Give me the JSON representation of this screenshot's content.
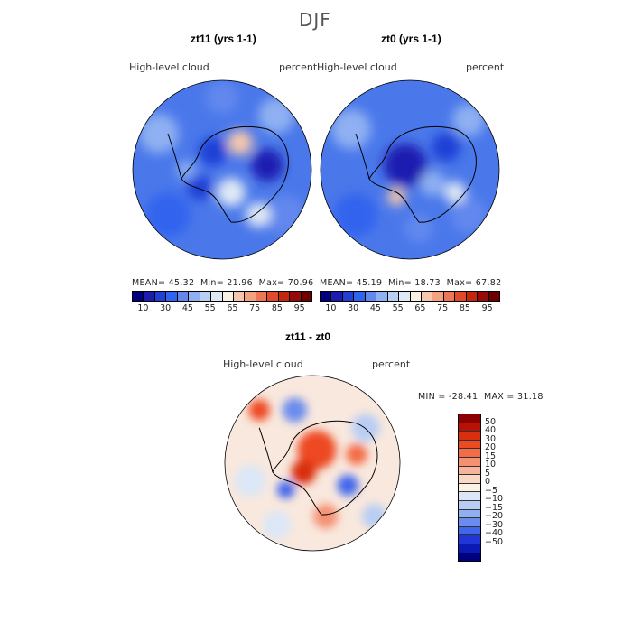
{
  "figure": {
    "title": "DJF"
  },
  "panels": [
    {
      "title": "zt11 (yrs 1-1)",
      "variable": "High-level cloud",
      "units": "percent",
      "stats": {
        "mean_label": "MEAN=",
        "mean": "45.32",
        "min_label": "Min=",
        "min": "21.96",
        "max_label": "Max=",
        "max": "70.96"
      }
    },
    {
      "title": "zt0 (yrs 1-1)",
      "variable": "High-level cloud",
      "units": "percent",
      "stats": {
        "mean_label": "MEAN=",
        "mean": "45.19",
        "min_label": "Min=",
        "min": "18.73",
        "max_label": "Max=",
        "max": "67.82"
      }
    },
    {
      "title": "zt11 - zt0",
      "variable": "High-level cloud",
      "units": "percent",
      "stats": {
        "min_label": "MIN =",
        "min": "-28.41",
        "max_label": "MAX =",
        "max": "31.18"
      }
    }
  ],
  "abs_colorbar": {
    "ticks": [
      "10",
      "30",
      "45",
      "55",
      "65",
      "75",
      "85",
      "95"
    ],
    "colors": [
      "#000080",
      "#1c1cb0",
      "#1f3fd6",
      "#3063ee",
      "#6288ee",
      "#8fb0f2",
      "#b8cff4",
      "#dfe9f5",
      "#fbf1e3",
      "#f6c7ad",
      "#f3a17f",
      "#ee7555",
      "#e2482a",
      "#c52610",
      "#970a08",
      "#6e0000"
    ]
  },
  "diff_colorbar": {
    "ticks": [
      "50",
      "40",
      "30",
      "20",
      "15",
      "10",
      "5",
      "0",
      "−5",
      "−10",
      "−15",
      "−20",
      "−30",
      "−40",
      "−50"
    ],
    "colors": [
      "#8b0000",
      "#b81206",
      "#d92e10",
      "#ee4a20",
      "#f36c45",
      "#f59073",
      "#f7b49d",
      "#f9d8c6",
      "#fbf2e4",
      "#dbe7f7",
      "#b8cdf4",
      "#90aef0",
      "#6a8cee",
      "#4066ec",
      "#1e37d6",
      "#0c1ab4",
      "#000080"
    ]
  }
}
